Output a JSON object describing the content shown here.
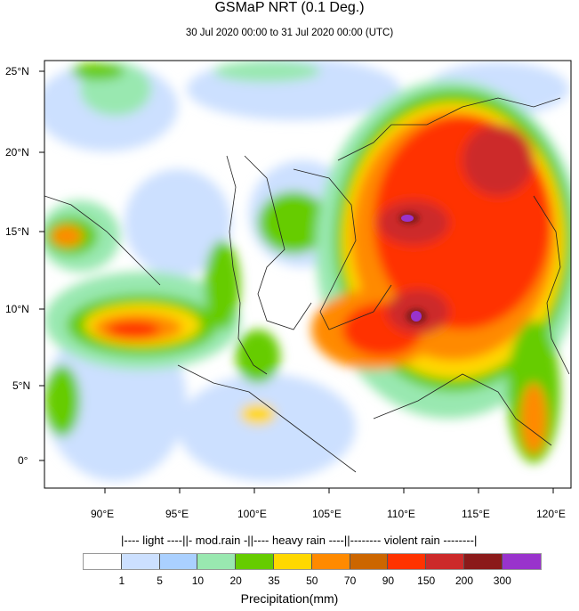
{
  "title": "GSMaP NRT (0.1 Deg.)",
  "subtitle": "30 Jul 2020 00:00 to 31 Jul 2020 00:00 (UTC)",
  "map": {
    "lon_labels": [
      "90°E",
      "95°E",
      "100°E",
      "105°E",
      "110°E",
      "115°E",
      "120°E"
    ],
    "lat_labels": [
      "25°N",
      "20°N",
      "15°N",
      "10°N",
      "5°N",
      "0°"
    ]
  },
  "colorbar": {
    "categories": "|---- light ----||- mod.rain -||---- heavy rain ----||-------- violent rain --------|",
    "colors": [
      "#ffffff",
      "#cce0ff",
      "#aad0ff",
      "#99e8b0",
      "#66cc00",
      "#ffd800",
      "#ff8a00",
      "#cc6600",
      "#ff3300",
      "#cc2a2a",
      "#8b1a1a",
      "#9933cc"
    ],
    "ticks": [
      "1",
      "5",
      "10",
      "20",
      "35",
      "50",
      "70",
      "90",
      "150",
      "200",
      "300"
    ],
    "unit_label": "Precipitation(mm)"
  }
}
